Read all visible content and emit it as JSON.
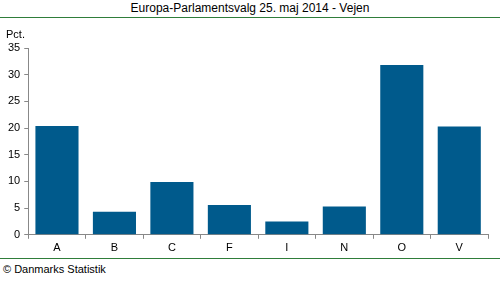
{
  "chart_data": {
    "type": "bar",
    "title": "Europa-Parlamentsvalg 25. maj 2014 - Vejen",
    "ylabel": "Pct.",
    "source": "© Danmarks Statistik",
    "categories": [
      "A",
      "B",
      "C",
      "F",
      "I",
      "N",
      "O",
      "V"
    ],
    "values": [
      20.4,
      4.3,
      9.9,
      5.6,
      2.5,
      5.3,
      31.8,
      20.3
    ],
    "color": "#005a8c",
    "ylim": [
      0,
      35
    ],
    "yticks": [
      0,
      5,
      10,
      15,
      20,
      25,
      30,
      35
    ],
    "grid": false
  }
}
